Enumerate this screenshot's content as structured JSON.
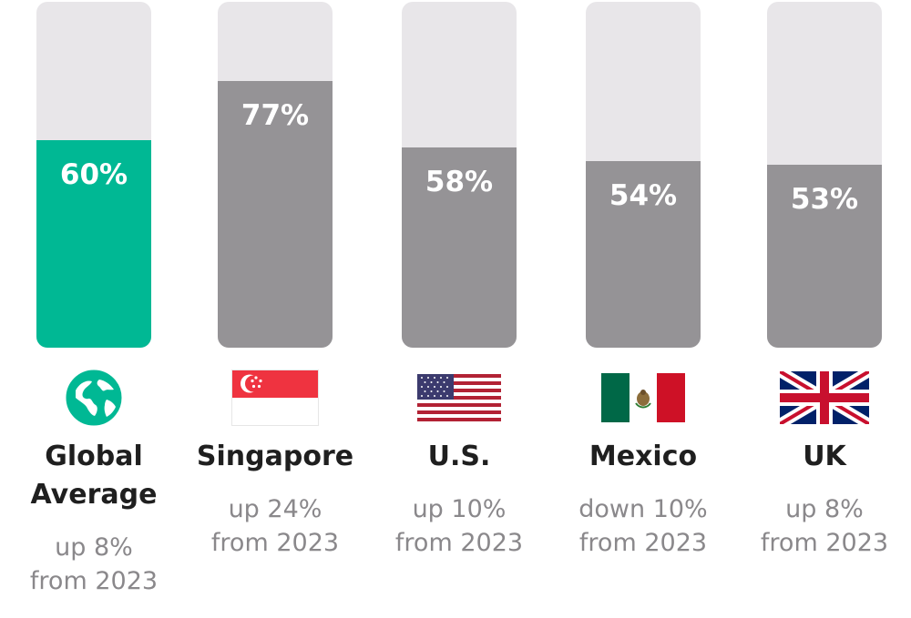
{
  "chart_data": {
    "type": "bar",
    "ylim": [
      0,
      100
    ],
    "categories": [
      "Global Average",
      "Singapore",
      "U.S.",
      "Mexico",
      "UK"
    ],
    "values": [
      60,
      77,
      58,
      54,
      53
    ],
    "value_labels": [
      "60%",
      "77%",
      "58%",
      "54%",
      "53%"
    ],
    "changes": [
      "up 8% from 2023",
      "up 24% from 2023",
      "up 10% from 2023",
      "down 10% from 2023",
      "up 8% from 2023"
    ],
    "icons": [
      "globe-icon",
      "singapore-flag-icon",
      "us-flag-icon",
      "mexico-flag-icon",
      "uk-flag-icon"
    ],
    "highlight_index": 0
  },
  "colors": {
    "highlight": "#00b894",
    "bar": "#959396",
    "track": "#e8e6e9",
    "label": "#1f1f1f",
    "sublabel": "#8a888b"
  },
  "columns": [
    {
      "name_lines": [
        "Global",
        "Average"
      ],
      "sub_lines": [
        "up 8%",
        "from 2023"
      ]
    },
    {
      "name_lines": [
        "Singapore"
      ],
      "sub_lines": [
        "up 24%",
        "from 2023"
      ]
    },
    {
      "name_lines": [
        "U.S."
      ],
      "sub_lines": [
        "up 10%",
        "from 2023"
      ]
    },
    {
      "name_lines": [
        "Mexico"
      ],
      "sub_lines": [
        "down 10%",
        "from 2023"
      ]
    },
    {
      "name_lines": [
        "UK"
      ],
      "sub_lines": [
        "up 8%",
        "from 2023"
      ]
    }
  ]
}
